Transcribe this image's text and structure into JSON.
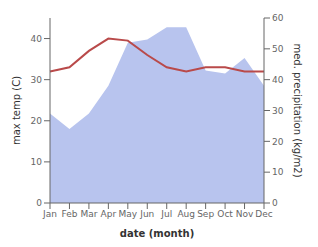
{
  "chart_data": {
    "type": "combo",
    "xlabel": "date (month)",
    "ylabel": "max temp (C)",
    "y2label": "med. precipitation (kg/m2)",
    "categories": [
      "Jan",
      "Feb",
      "Mar",
      "Apr",
      "May",
      "Jun",
      "Jul",
      "Aug",
      "Sep",
      "Oct",
      "Nov",
      "Dec"
    ],
    "series": [
      {
        "type": "area",
        "axis": "y2",
        "color": "#b8c4ee",
        "values": [
          29,
          24,
          29,
          38,
          52,
          53,
          57,
          57,
          43,
          42,
          47,
          38
        ]
      },
      {
        "type": "line",
        "color": "#b94a4a",
        "values": [
          32,
          33,
          37,
          40,
          39.5,
          36,
          33,
          32,
          33,
          33,
          32,
          32
        ]
      }
    ],
    "ylim": [
      0,
      45
    ],
    "yticks": [
      0,
      10,
      20,
      30,
      40
    ],
    "y2lim": [
      0,
      60
    ],
    "y2ticks": [
      0,
      10,
      20,
      30,
      40,
      50,
      60
    ],
    "grid": false
  }
}
